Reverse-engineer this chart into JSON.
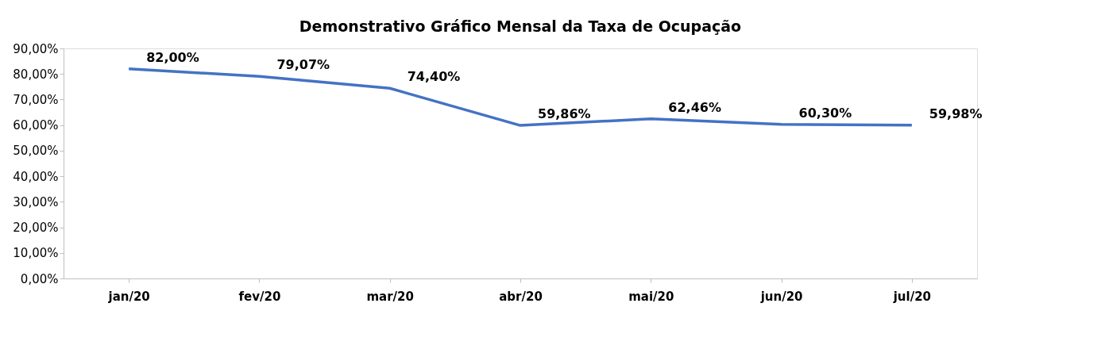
{
  "chart_data": {
    "type": "line",
    "title": "Demonstrativo Gráfico Mensal da Taxa de Ocupação",
    "categories": [
      "jan/20",
      "fev/20",
      "mar/20",
      "abr/20",
      "mai/20",
      "jun/20",
      "jul/20"
    ],
    "series": [
      {
        "color": "#4472c4",
        "values": [
          82.0,
          79.07,
          74.4,
          59.86,
          62.46,
          60.3,
          59.98
        ],
        "value_labels": [
          "82,00%",
          "79,07%",
          "74,40%",
          "59,86%",
          "62,46%",
          "60,30%",
          "59,98%"
        ]
      }
    ],
    "ylim": [
      0,
      90
    ],
    "yticks": [
      {
        "value": 0,
        "label": "0,00%"
      },
      {
        "value": 10,
        "label": "10,00%"
      },
      {
        "value": 20,
        "label": "20,00%"
      },
      {
        "value": 30,
        "label": "30,00%"
      },
      {
        "value": 40,
        "label": "40,00%"
      },
      {
        "value": 50,
        "label": "50,00%"
      },
      {
        "value": 60,
        "label": "60,00%"
      },
      {
        "value": 70,
        "label": "70,00%"
      },
      {
        "value": 80,
        "label": "80,00%"
      },
      {
        "value": 90,
        "label": "90,00%"
      }
    ],
    "grid": false,
    "marker": "none",
    "line_style": "solid"
  }
}
